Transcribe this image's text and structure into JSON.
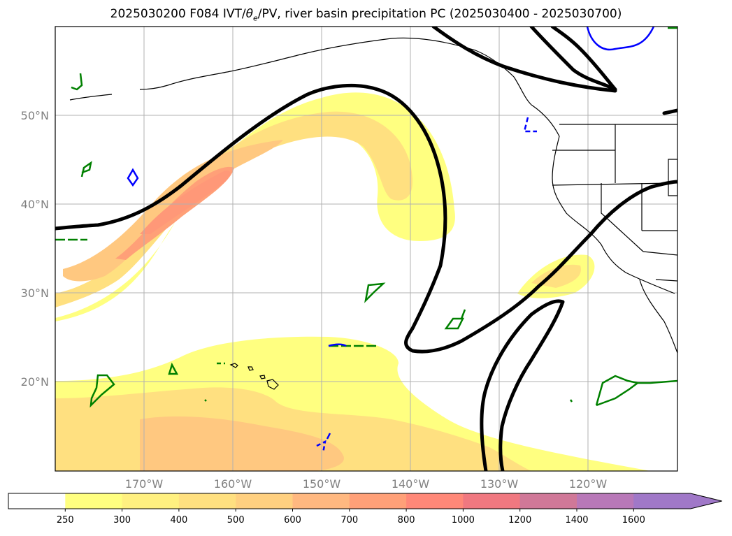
{
  "title": "2025030200 F084 IVT/θe/PV, river basin precipitation PC (2025030400 - 2025030700)",
  "title_prefix": "2025030200 F084 IVT/",
  "title_theta": "θ",
  "title_sub": "e",
  "title_suffix": "/PV, river basin precipitation PC (2025030400 - 2025030700)",
  "lat_labels": [
    "50°N",
    "40°N",
    "30°N",
    "20°N"
  ],
  "lon_labels": [
    "170°W",
    "160°W",
    "150°W",
    "140°W",
    "130°W",
    "120°W"
  ],
  "colorbar": {
    "ticks": [
      "250",
      "300",
      "400",
      "500",
      "600",
      "700",
      "800",
      "1000",
      "1200",
      "1400",
      "1600"
    ],
    "colors": [
      "#ffffff",
      "#ffff80",
      "#fff080",
      "#ffe080",
      "#ffd080",
      "#ffb880",
      "#ffa078",
      "#ff8878",
      "#f07880",
      "#d07898",
      "#b878b8",
      "#a078c8"
    ],
    "extend": "max"
  },
  "colors": {
    "pv_contour": "#000000",
    "theta_e_contour": "#008000",
    "other_contour": "#0000ff",
    "gridline": "#b0b0b0",
    "coast": "#000000"
  }
}
